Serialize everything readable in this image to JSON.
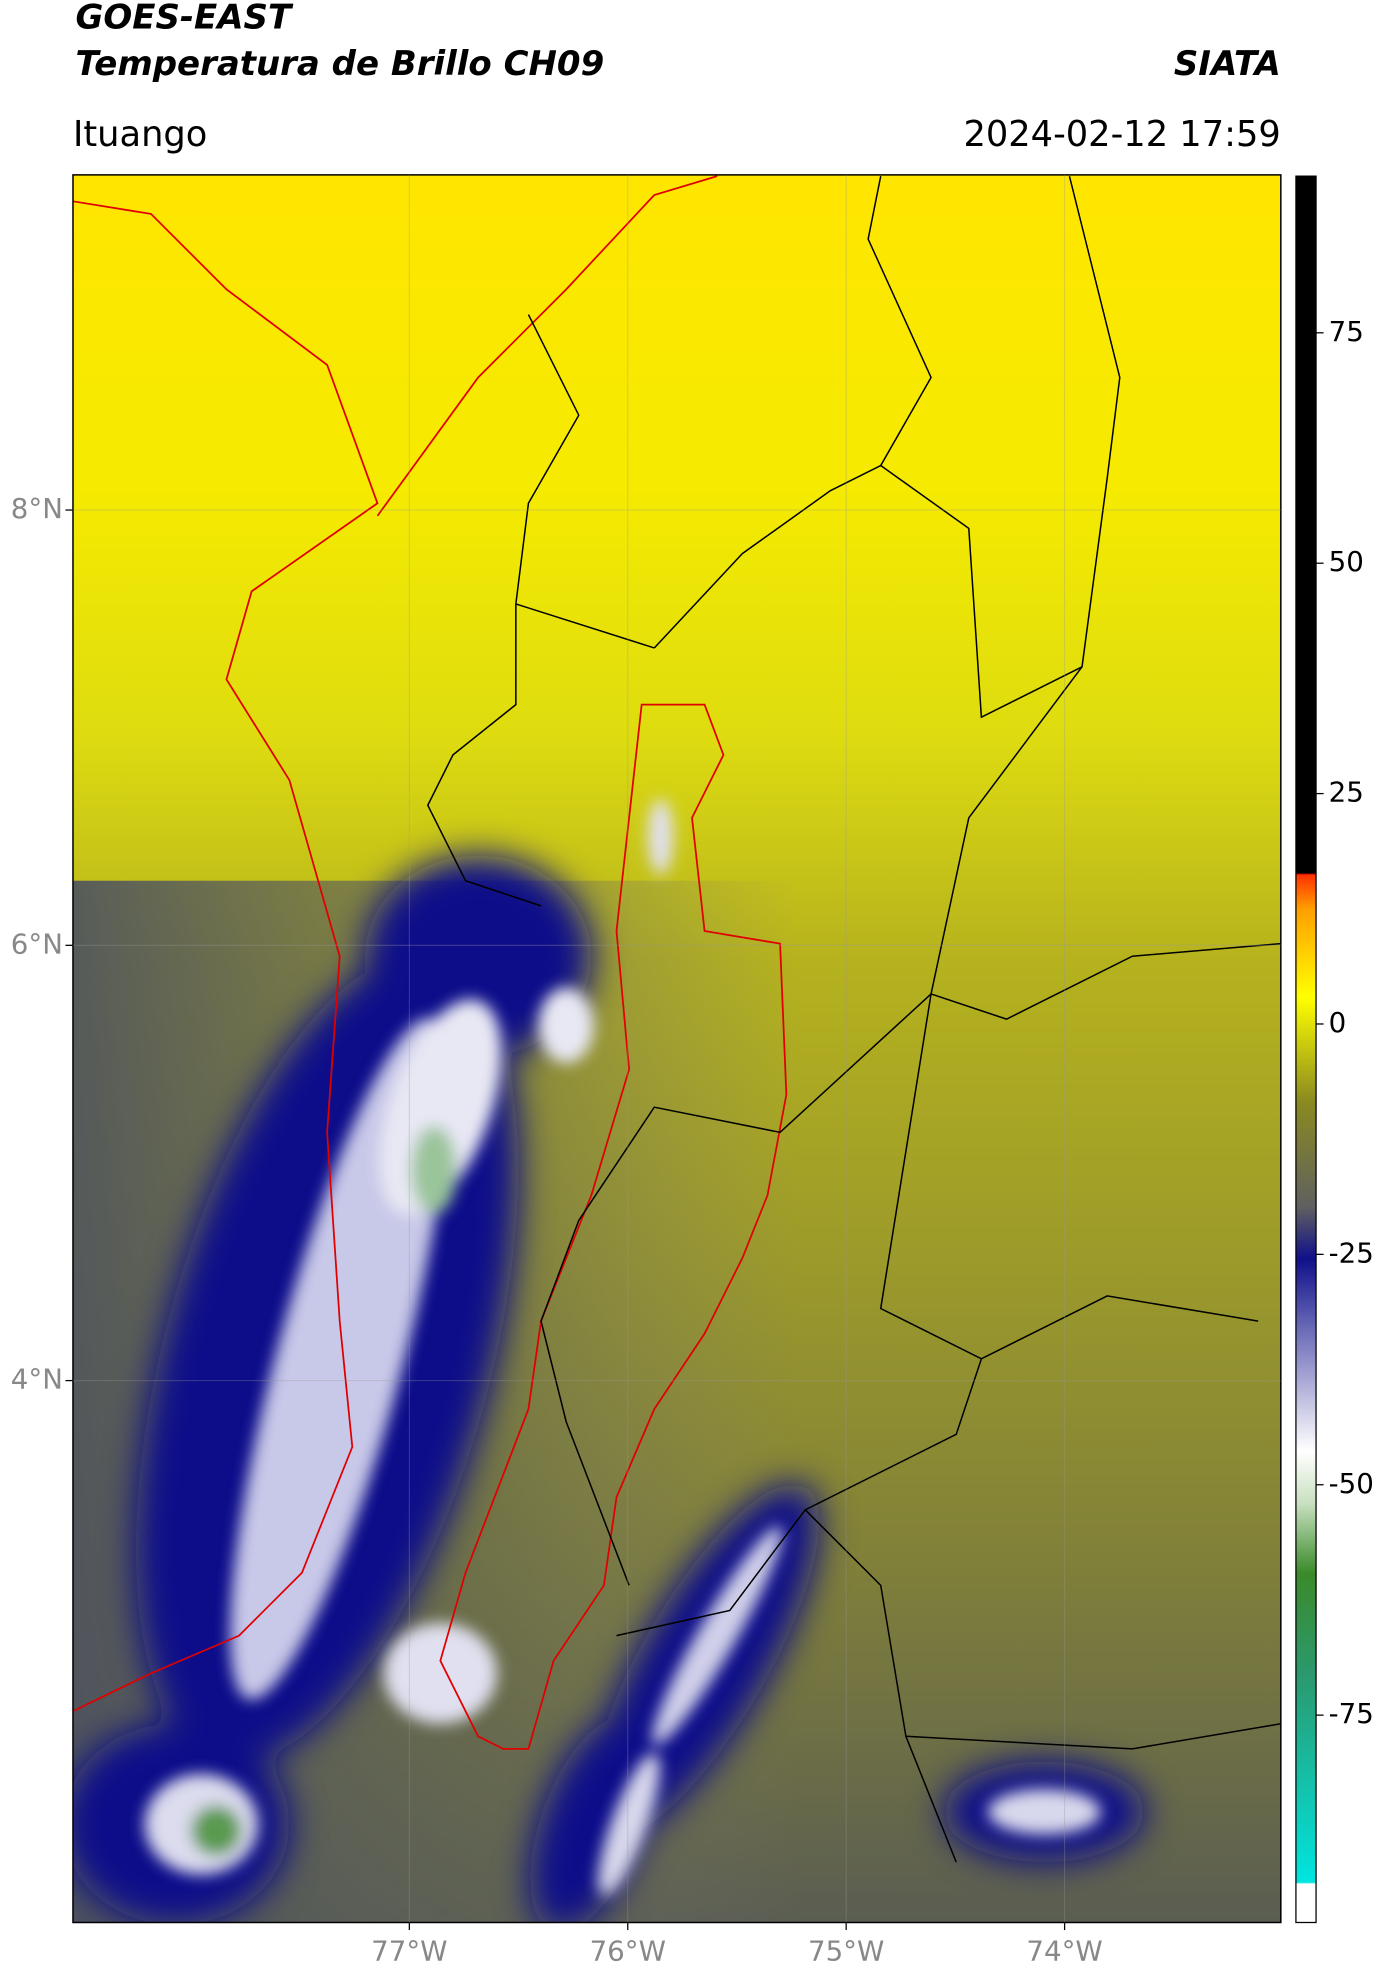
{
  "header": {
    "title": "GOES-EAST",
    "subtitle": "Temperatura de Brillo CH09",
    "brand": "SIATA",
    "location": "Ituango",
    "timestamp": "2024-02-12 17:59"
  },
  "map": {
    "xlim": [
      -78.54,
      -73.01
    ],
    "ylim": [
      1.51,
      9.54
    ],
    "xticks": [
      {
        "value": -77,
        "label": "77°W"
      },
      {
        "value": -76,
        "label": "76°W"
      },
      {
        "value": -75,
        "label": "75°W"
      },
      {
        "value": -74,
        "label": "74°W"
      }
    ],
    "yticks": [
      {
        "value": 8,
        "label": "8°N"
      },
      {
        "value": 6,
        "label": "6°N"
      },
      {
        "value": 4,
        "label": "4°N"
      }
    ],
    "grid": true
  },
  "colorbar": {
    "lim": [
      -97.5,
      92
    ],
    "ticks": [
      75,
      50,
      25,
      0,
      -25,
      -50,
      -75
    ]
  }
}
